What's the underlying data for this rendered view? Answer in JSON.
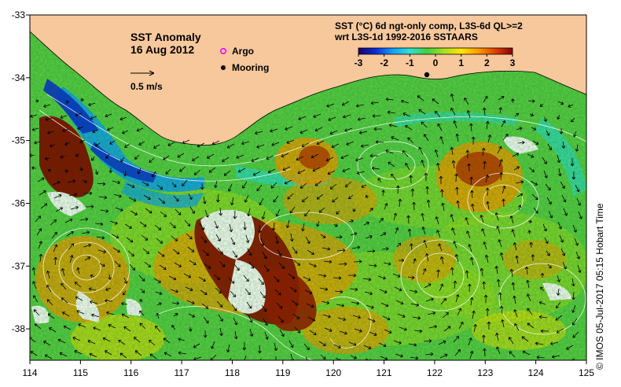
{
  "title": "SST Anomaly",
  "date": "16 Aug 2012",
  "header_line1": "SST (°C) 6d ngt-only comp, L3S-6d QL>=2",
  "header_line2": "wrt L3S-1d 1992-2016 SSTAARS",
  "velocity_scale_label": "0.5 m/s",
  "legend": {
    "argo": "Argo",
    "mooring": "Mooring"
  },
  "colorbar": {
    "min": -3,
    "max": 3,
    "ticks": [
      "-3",
      "-2",
      "-1",
      "0",
      "1",
      "2",
      "3"
    ],
    "colors": [
      "#1a006a",
      "#0a2bd8",
      "#10a0ff",
      "#30e0d0",
      "#40d040",
      "#a8e020",
      "#ffe600",
      "#ff9a00",
      "#e04000",
      "#8a0000"
    ]
  },
  "axes": {
    "lon_ticks": [
      "114",
      "115",
      "116",
      "117",
      "118",
      "119",
      "120",
      "121",
      "122",
      "123",
      "124",
      "125"
    ],
    "lat_ticks": [
      "-33",
      "-34",
      "-35",
      "-36",
      "-37",
      "-38"
    ],
    "lon_range": [
      114,
      125
    ],
    "lat_range": [
      -38.5,
      -33
    ]
  },
  "colors": {
    "land": "#f7c89c",
    "ocean_base": "#5ccf4a",
    "argo_marker": "#ff00ff",
    "mooring_marker": "#000000"
  },
  "credit": "© IMOS 05-Jul-2017 05:15 Hobart Time"
}
